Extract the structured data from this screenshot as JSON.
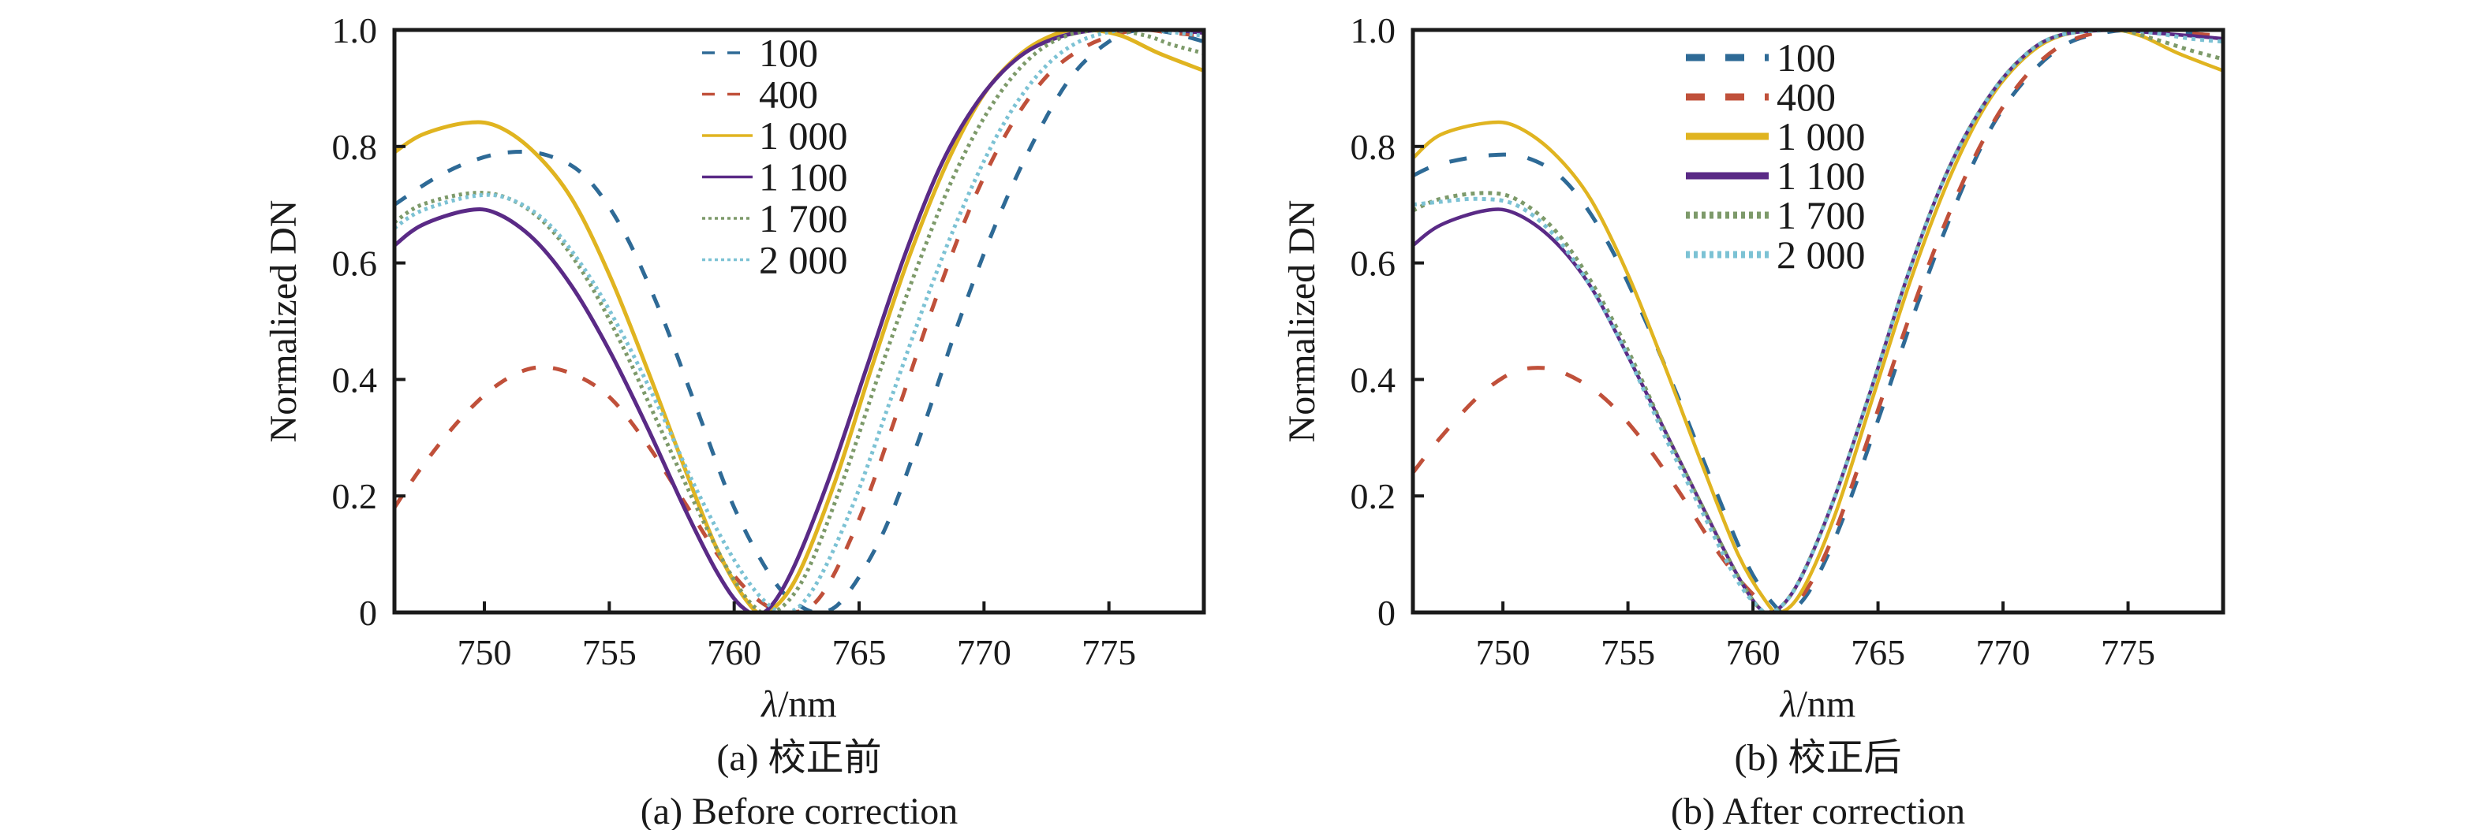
{
  "chart_data": [
    {
      "type": "line",
      "panel": "a",
      "caption_zh": "(a) 校正前",
      "caption_en": "(a) Before correction",
      "xlabel_symbol": "λ",
      "xlabel_unit": "/nm",
      "ylabel": "Normalized DN",
      "xlim": [
        746.4,
        778.8
      ],
      "ylim": [
        0,
        1.0
      ],
      "xticks": [
        750,
        755,
        760,
        765,
        770,
        775
      ],
      "xtick_labels": [
        "750",
        "755",
        "760",
        "765",
        "770",
        "775"
      ],
      "yticks": [
        0,
        0.2,
        0.4,
        0.6,
        0.8,
        1.0
      ],
      "ytick_labels": [
        "0",
        "0.2",
        "0.4",
        "0.6",
        "0.8",
        "1.0"
      ],
      "grid": false,
      "legend_position": "top-center",
      "series": [
        {
          "name": "100",
          "style": "dashed",
          "color": "#2e6a96",
          "x": [
            746.4,
            748,
            749.5,
            751,
            752.5,
            754,
            755.5,
            757,
            758.5,
            760,
            761.5,
            762.5,
            763.5,
            764.5,
            766,
            767.5,
            769,
            770.5,
            772,
            773.5,
            775,
            776.2,
            777.5,
            778.8
          ],
          "y": [
            0.7,
            0.745,
            0.775,
            0.79,
            0.785,
            0.75,
            0.66,
            0.52,
            0.35,
            0.18,
            0.06,
            0.015,
            0.0,
            0.03,
            0.14,
            0.31,
            0.5,
            0.67,
            0.81,
            0.92,
            0.98,
            1.0,
            0.995,
            0.98
          ]
        },
        {
          "name": "400",
          "style": "dashed",
          "color": "#c0503a",
          "x": [
            746.4,
            747.5,
            749,
            750.5,
            752,
            753.5,
            755,
            756.5,
            758,
            759.5,
            761,
            762.3,
            763.5,
            765,
            766.5,
            768,
            769.5,
            771,
            772.5,
            774,
            775.5,
            776.5,
            777.5,
            778.8
          ],
          "y": [
            0.18,
            0.25,
            0.33,
            0.39,
            0.42,
            0.41,
            0.37,
            0.29,
            0.19,
            0.09,
            0.02,
            0.0,
            0.03,
            0.16,
            0.34,
            0.53,
            0.7,
            0.83,
            0.92,
            0.97,
            0.995,
            1.0,
            0.995,
            0.99
          ]
        },
        {
          "name": "1 000",
          "style": "solid",
          "color": "#e0b420",
          "x": [
            746.4,
            747.5,
            749.2,
            750.5,
            752,
            753.5,
            755,
            756.5,
            758,
            759.3,
            760.5,
            761.3,
            762.5,
            764,
            765.5,
            767,
            768.5,
            770,
            771.5,
            773,
            774.2,
            775.5,
            777,
            778.8
          ],
          "y": [
            0.79,
            0.82,
            0.84,
            0.835,
            0.79,
            0.71,
            0.58,
            0.42,
            0.25,
            0.11,
            0.02,
            0.0,
            0.06,
            0.22,
            0.42,
            0.61,
            0.77,
            0.89,
            0.96,
            0.995,
            1.0,
            0.99,
            0.96,
            0.93
          ]
        },
        {
          "name": "1 100",
          "style": "solid",
          "color": "#5a2a86",
          "x": [
            746.4,
            747.5,
            749.3,
            750.5,
            752,
            753.5,
            755,
            756.5,
            758,
            759.3,
            760.3,
            761.2,
            762.3,
            763.8,
            765.3,
            766.8,
            768.3,
            769.8,
            771.3,
            772.8,
            774.5,
            776,
            777.5,
            778.8
          ],
          "y": [
            0.63,
            0.665,
            0.69,
            0.685,
            0.64,
            0.56,
            0.45,
            0.32,
            0.18,
            0.07,
            0.01,
            0.0,
            0.07,
            0.23,
            0.42,
            0.61,
            0.77,
            0.88,
            0.95,
            0.985,
            1.0,
            1.0,
            1.0,
            0.995
          ]
        },
        {
          "name": "1 700",
          "style": "dotted",
          "color": "#7d9a6a",
          "x": [
            746.4,
            747.5,
            749.5,
            751,
            752.5,
            754,
            755.5,
            757,
            758.5,
            759.8,
            760.8,
            761.6,
            762.8,
            764.3,
            765.8,
            767.3,
            768.8,
            770.3,
            771.8,
            773.3,
            775,
            776.5,
            777.5,
            778.8
          ],
          "y": [
            0.67,
            0.7,
            0.72,
            0.71,
            0.665,
            0.58,
            0.46,
            0.32,
            0.18,
            0.07,
            0.01,
            0.0,
            0.06,
            0.22,
            0.41,
            0.59,
            0.75,
            0.87,
            0.95,
            0.99,
            1.0,
            0.99,
            0.975,
            0.96
          ]
        },
        {
          "name": "2 000",
          "style": "dotted",
          "color": "#7cc2d4",
          "x": [
            746.4,
            747.5,
            749.6,
            751,
            752.5,
            754,
            755.5,
            757,
            758.5,
            760,
            761.2,
            762.2,
            763.3,
            764.8,
            766.3,
            767.8,
            769.3,
            770.8,
            772.3,
            773.8,
            775.5,
            776.8,
            777.8,
            778.8
          ],
          "y": [
            0.66,
            0.69,
            0.715,
            0.71,
            0.67,
            0.59,
            0.48,
            0.35,
            0.21,
            0.09,
            0.02,
            0.0,
            0.05,
            0.19,
            0.37,
            0.55,
            0.71,
            0.84,
            0.93,
            0.98,
            1.0,
            1.0,
            0.995,
            0.99
          ]
        }
      ]
    },
    {
      "type": "line",
      "panel": "b",
      "caption_zh": "(b) 校正后",
      "caption_en": "(b) After correction",
      "xlabel_symbol": "λ",
      "xlabel_unit": "/nm",
      "ylabel": "Normalized DN",
      "xlim": [
        746.4,
        778.8
      ],
      "ylim": [
        0,
        1.0
      ],
      "xticks": [
        750,
        755,
        760,
        765,
        770,
        775
      ],
      "xtick_labels": [
        "750",
        "755",
        "760",
        "765",
        "770",
        "775"
      ],
      "yticks": [
        0,
        0.2,
        0.4,
        0.6,
        0.8,
        1.0
      ],
      "ytick_labels": [
        "0",
        "0.2",
        "0.4",
        "0.6",
        "0.8",
        "1.0"
      ],
      "grid": false,
      "legend_position": "top-center",
      "series": [
        {
          "name": "100",
          "style": "dashed",
          "color": "#2e6a96",
          "x": [
            746.4,
            747.5,
            749.5,
            751,
            752.5,
            754,
            755.5,
            757,
            758.5,
            759.8,
            760.8,
            761.4,
            762.3,
            763.5,
            765,
            766.5,
            768,
            769.5,
            771,
            772.5,
            774,
            775.3,
            777,
            778.8
          ],
          "y": [
            0.75,
            0.77,
            0.785,
            0.78,
            0.74,
            0.65,
            0.52,
            0.37,
            0.21,
            0.08,
            0.015,
            0.0,
            0.04,
            0.15,
            0.33,
            0.52,
            0.69,
            0.83,
            0.92,
            0.975,
            0.995,
            1.0,
            0.995,
            0.99
          ]
        },
        {
          "name": "400",
          "style": "dashed",
          "color": "#c0503a",
          "x": [
            746.4,
            747.5,
            749,
            750.3,
            751.4,
            752.5,
            754,
            755.5,
            757,
            758.5,
            759.8,
            761,
            762,
            763.2,
            764.7,
            766.2,
            767.7,
            769.2,
            770.7,
            772.2,
            773.7,
            775.2,
            777,
            778.8
          ],
          "y": [
            0.24,
            0.3,
            0.37,
            0.41,
            0.42,
            0.41,
            0.37,
            0.3,
            0.21,
            0.11,
            0.04,
            0.0,
            0.03,
            0.13,
            0.31,
            0.5,
            0.67,
            0.81,
            0.91,
            0.97,
            0.995,
            1.0,
            0.995,
            0.99
          ]
        },
        {
          "name": "1 000",
          "style": "solid",
          "color": "#e0b420",
          "x": [
            746.4,
            747.5,
            749.3,
            750.5,
            752,
            753.5,
            755,
            756.5,
            758,
            759.4,
            760.5,
            761.1,
            762,
            763.3,
            764.8,
            766.3,
            767.8,
            769.3,
            770.8,
            772.3,
            774.3,
            775.5,
            777,
            778.8
          ],
          "y": [
            0.78,
            0.82,
            0.84,
            0.835,
            0.79,
            0.71,
            0.58,
            0.42,
            0.25,
            0.1,
            0.02,
            0.0,
            0.04,
            0.17,
            0.37,
            0.57,
            0.74,
            0.87,
            0.95,
            0.99,
            1.0,
            0.99,
            0.96,
            0.93
          ]
        },
        {
          "name": "1 100",
          "style": "solid",
          "color": "#5a2a86",
          "x": [
            746.4,
            747.5,
            749.3,
            750.5,
            752,
            753.5,
            755,
            756.5,
            758,
            759.3,
            760.2,
            760.8,
            761.8,
            763.2,
            764.7,
            766.2,
            767.7,
            769.2,
            770.7,
            772.2,
            774.5,
            776,
            777.5,
            778.8
          ],
          "y": [
            0.63,
            0.665,
            0.69,
            0.685,
            0.64,
            0.56,
            0.44,
            0.31,
            0.18,
            0.07,
            0.01,
            0.0,
            0.05,
            0.19,
            0.38,
            0.58,
            0.75,
            0.87,
            0.95,
            0.99,
            1.0,
            0.995,
            0.99,
            0.985
          ]
        },
        {
          "name": "1 700",
          "style": "dotted",
          "color": "#7d9a6a",
          "x": [
            746.4,
            747.5,
            749.2,
            750.5,
            752,
            753.5,
            755,
            756.5,
            758,
            759.3,
            760.2,
            760.8,
            761.8,
            763.2,
            764.7,
            766.2,
            767.7,
            769.2,
            770.7,
            772.2,
            774.5,
            776,
            777.5,
            778.8
          ],
          "y": [
            0.69,
            0.71,
            0.72,
            0.71,
            0.66,
            0.57,
            0.45,
            0.31,
            0.18,
            0.07,
            0.01,
            0.0,
            0.05,
            0.19,
            0.38,
            0.58,
            0.75,
            0.87,
            0.95,
            0.99,
            1.0,
            0.985,
            0.965,
            0.95
          ]
        },
        {
          "name": "2 000",
          "style": "dotted",
          "color": "#7cc2d4",
          "x": [
            746.4,
            747.5,
            749,
            750.5,
            752,
            753.5,
            755,
            756.5,
            758,
            759.3,
            760.2,
            760.8,
            761.8,
            763.2,
            764.7,
            766.2,
            767.7,
            769.2,
            770.7,
            772.2,
            774.5,
            776,
            777.5,
            778.8
          ],
          "y": [
            0.7,
            0.705,
            0.71,
            0.7,
            0.65,
            0.56,
            0.44,
            0.3,
            0.17,
            0.06,
            0.01,
            0.0,
            0.05,
            0.19,
            0.38,
            0.58,
            0.75,
            0.87,
            0.95,
            0.99,
            1.0,
            0.995,
            0.985,
            0.98
          ]
        }
      ]
    }
  ]
}
